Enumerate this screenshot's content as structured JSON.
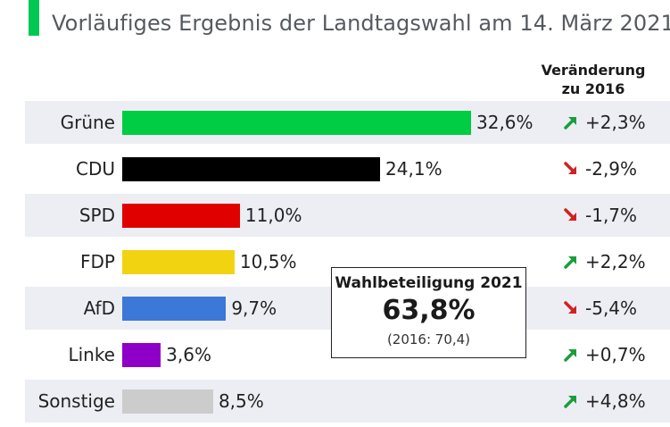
{
  "chart_data": {
    "type": "bar",
    "orientation": "horizontal",
    "subtitle": "Vorläufiges Ergebnis der Landtagswahl am 14. März 2021",
    "change_header": "Veränderung zu 2016",
    "categories": [
      "Grüne",
      "CDU",
      "SPD",
      "FDP",
      "AfD",
      "Linke",
      "Sonstige"
    ],
    "values": [
      32.6,
      24.1,
      11.0,
      10.5,
      9.7,
      3.6,
      8.5
    ],
    "value_labels": [
      "32,6%",
      "24,1%",
      "11,0%",
      "10,5%",
      "9,7%",
      "3,6%",
      "8,5%"
    ],
    "colors": [
      "#00cc44",
      "#000000",
      "#e00000",
      "#f2d312",
      "#3b78d8",
      "#8e00c8",
      "#cccccc"
    ],
    "changes": [
      2.3,
      -2.9,
      -1.7,
      2.2,
      -5.4,
      0.7,
      4.8
    ],
    "change_labels": [
      "+2,3%",
      "-2,9%",
      "-1,7%",
      "+2,2%",
      "-5,4%",
      "+0,7%",
      "+4,8%"
    ],
    "up_color": "#1a9e3a",
    "down_color": "#d42020",
    "xlim": [
      0,
      32.6
    ],
    "turnout": {
      "title": "Wahlbeteiligung 2021",
      "value": "63,8%",
      "previous": "(2016: 70,4)"
    }
  }
}
